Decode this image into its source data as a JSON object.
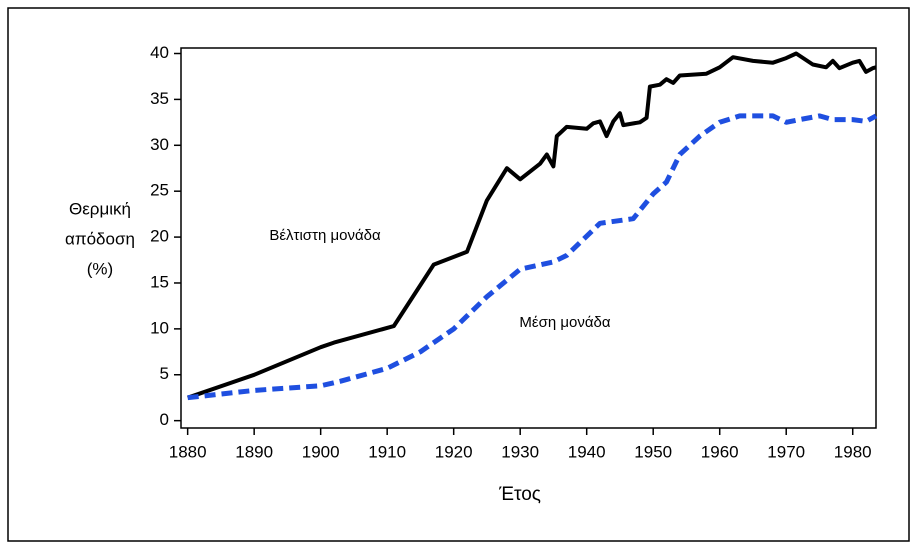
{
  "chart_data": {
    "type": "line",
    "y_label": [
      "Θερμική",
      "απόδοση",
      "(%)"
    ],
    "x_label": "Έτος",
    "xlim": [
      1879,
      1983.5
    ],
    "xticks": [
      1880,
      1890,
      1900,
      1910,
      1920,
      1930,
      1940,
      1950,
      1960,
      1970,
      1980
    ],
    "ylim": [
      -0.8,
      40.6
    ],
    "yticks": [
      0,
      5,
      10,
      15,
      20,
      25,
      30,
      35,
      40
    ],
    "series": [
      {
        "name": "Βέλτιστη μονάδα",
        "color": "#000000",
        "dashed": false,
        "x": [
          1880,
          1890,
          1900,
          1902,
          1911,
          1917,
          1922,
          1925,
          1928,
          1930,
          1933,
          1934,
          1935,
          1935.5,
          1937,
          1940,
          1941,
          1942,
          1943,
          1944,
          1945,
          1945.5,
          1948,
          1949,
          1949.5,
          1951,
          1952,
          1953,
          1954,
          1958,
          1960,
          1962,
          1965,
          1968,
          1970,
          1971.5,
          1974,
          1976,
          1977,
          1978,
          1980,
          1981,
          1982,
          1983,
          1983.5
        ],
        "values": [
          2.5,
          5,
          8,
          8.5,
          10.3,
          17,
          18.4,
          24,
          27.5,
          26.3,
          28,
          29,
          27.7,
          31,
          32,
          31.8,
          32.4,
          32.6,
          31,
          32.6,
          33.5,
          32.2,
          32.5,
          33,
          36.4,
          36.6,
          37.2,
          36.8,
          37.6,
          37.8,
          38.5,
          39.6,
          39.2,
          39,
          39.5,
          40,
          38.8,
          38.5,
          39.2,
          38.4,
          39,
          39.2,
          38,
          38.4,
          38.5
        ]
      },
      {
        "name": "Μέση μονάδα",
        "color": "#1f4fe0",
        "dashed": true,
        "x": [
          1880,
          1890,
          1900,
          1903,
          1910,
          1915,
          1920,
          1925,
          1930,
          1935,
          1937,
          1942,
          1947,
          1950,
          1952,
          1954,
          1957,
          1960,
          1963,
          1968,
          1970,
          1972,
          1975,
          1977,
          1980,
          1982,
          1983.5
        ],
        "values": [
          2.5,
          3.3,
          3.8,
          4.3,
          5.7,
          7.5,
          10,
          13.5,
          16.5,
          17.3,
          18,
          21.5,
          22,
          24.7,
          26,
          29,
          31,
          32.5,
          33.2,
          33.2,
          32.5,
          32.8,
          33.2,
          32.8,
          32.8,
          32.6,
          33.2
        ]
      }
    ]
  }
}
